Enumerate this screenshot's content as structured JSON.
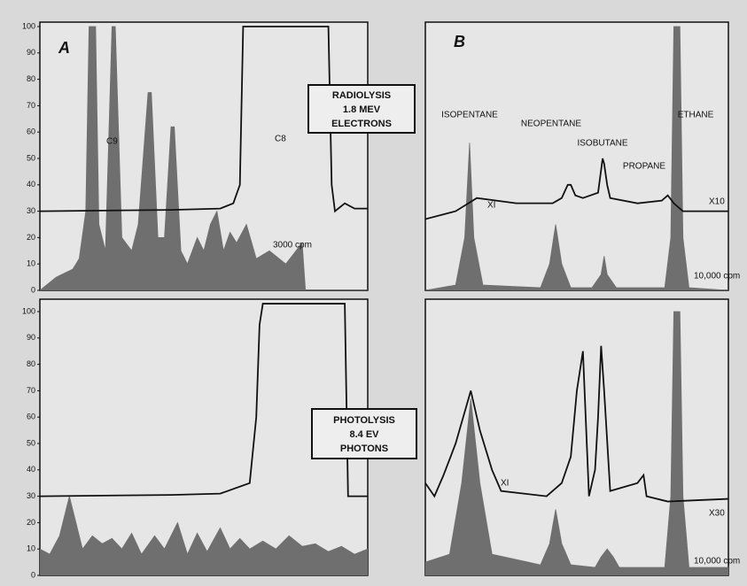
{
  "chart_data": [
    {
      "type": "line",
      "panel": "A",
      "ylim": [
        0,
        100
      ],
      "yticks": [
        0,
        10,
        20,
        30,
        40,
        50,
        60,
        70,
        80,
        90,
        100
      ],
      "xlim": [
        0,
        100
      ],
      "annotations": [
        "RADIOLYSIS",
        "1.8 MEV",
        "ELECTRONS",
        "C9",
        "C8",
        "3000 cpm"
      ],
      "series": [
        {
          "type": "area",
          "color": "#6f6f6f",
          "x": [
            0,
            5,
            10,
            12,
            14,
            15,
            17,
            18,
            20,
            22,
            23,
            25,
            28,
            30,
            33,
            34,
            36,
            38,
            40,
            41,
            43,
            45,
            48,
            50,
            52,
            54,
            56,
            58,
            60,
            63,
            66,
            70,
            75,
            80,
            81,
            100
          ],
          "values": [
            0,
            5,
            8,
            12,
            30,
            100,
            100,
            25,
            15,
            100,
            100,
            20,
            15,
            25,
            75,
            75,
            20,
            20,
            62,
            62,
            15,
            10,
            20,
            15,
            25,
            30,
            15,
            22,
            18,
            25,
            12,
            15,
            10,
            18,
            0,
            0
          ]
        },
        {
          "type": "line",
          "color": "#111111",
          "x": [
            0,
            40,
            55,
            59,
            61,
            62,
            88,
            89,
            90,
            93,
            96,
            100
          ],
          "values": [
            30,
            30.5,
            31,
            33,
            40,
            100,
            100,
            40,
            30,
            33,
            31,
            31
          ]
        }
      ]
    },
    {
      "type": "line",
      "panel": "B",
      "ylim": [
        0,
        100
      ],
      "xlim": [
        0,
        100
      ],
      "annotations": [
        "ISOPENTANE",
        "NEOPENTANE",
        "ISOBUTANE",
        "PROPANE",
        "ETHANE",
        "XI",
        "X10",
        "10,000 cpm"
      ],
      "series": [
        {
          "type": "area",
          "color": "#6f6f6f",
          "x": [
            0,
            10,
            13,
            14.6,
            16,
            19,
            38,
            41,
            43,
            45,
            48,
            55,
            58,
            59,
            60,
            63,
            79,
            81,
            82,
            84,
            85,
            87,
            100
          ],
          "values": [
            0,
            2,
            20,
            56,
            20,
            2,
            1,
            10,
            25,
            10,
            1,
            1,
            6,
            13,
            6,
            1,
            1,
            20,
            100,
            100,
            20,
            1,
            0
          ]
        },
        {
          "type": "line",
          "color": "#111111",
          "x": [
            0,
            10,
            17,
            30,
            42,
            45,
            47,
            48,
            49.5,
            52,
            57,
            58.5,
            59,
            60,
            61,
            70,
            78,
            80,
            82,
            85,
            100
          ],
          "values": [
            27,
            30,
            35,
            33,
            33,
            35,
            40,
            40,
            36,
            35,
            37,
            50,
            48,
            40,
            35,
            33,
            34,
            36,
            33,
            30,
            30
          ]
        }
      ]
    },
    {
      "type": "line",
      "panel": "A",
      "ylim": [
        0,
        100
      ],
      "yticks": [
        0,
        10,
        20,
        30,
        40,
        50,
        60,
        70,
        80,
        90,
        100
      ],
      "xlim": [
        0,
        100
      ],
      "annotations": [
        "PHOTOLYSIS",
        "8.4 EV",
        "PHOTONS"
      ],
      "series": [
        {
          "type": "area",
          "color": "#6f6f6f",
          "x": [
            0,
            3,
            6,
            9,
            11,
            13,
            16,
            19,
            22,
            25,
            28,
            31,
            35,
            38,
            42,
            45,
            48,
            51,
            55,
            58,
            61,
            64,
            68,
            72,
            76,
            80,
            84,
            88,
            92,
            96,
            100
          ],
          "values": [
            10,
            8,
            15,
            30,
            20,
            10,
            15,
            12,
            14,
            10,
            16,
            8,
            15,
            10,
            20,
            8,
            16,
            9,
            18,
            10,
            14,
            10,
            13,
            10,
            15,
            11,
            12,
            9,
            11,
            8,
            10
          ]
        },
        {
          "type": "line",
          "color": "#111111",
          "x": [
            0,
            40,
            55,
            64,
            66,
            67,
            68,
            93,
            94,
            100
          ],
          "values": [
            30,
            30.5,
            31,
            35,
            60,
            95,
            103,
            103,
            30,
            30
          ]
        }
      ]
    },
    {
      "type": "line",
      "panel": "B",
      "ylim": [
        0,
        100
      ],
      "xlim": [
        0,
        100
      ],
      "annotations": [
        "XI",
        "X30",
        "10,000 cpm"
      ],
      "series": [
        {
          "type": "area",
          "color": "#6f6f6f",
          "x": [
            0,
            8,
            12,
            15,
            18,
            22,
            38,
            41,
            43,
            45,
            48,
            56,
            58,
            60,
            62,
            64,
            79,
            81,
            82,
            84,
            85,
            87,
            100
          ],
          "values": [
            5,
            8,
            35,
            67,
            35,
            8,
            4,
            12,
            25,
            12,
            4,
            3,
            7,
            10,
            7,
            3,
            3,
            30,
            100,
            100,
            30,
            3,
            3
          ]
        },
        {
          "type": "line",
          "color": "#111111",
          "x": [
            0,
            3,
            6,
            10,
            15,
            18,
            22,
            25,
            40,
            45,
            48,
            50,
            52,
            54,
            56,
            57,
            58,
            59,
            61,
            70,
            72,
            73,
            80,
            100
          ],
          "values": [
            35,
            30,
            38,
            50,
            70,
            55,
            40,
            32,
            30,
            35,
            45,
            70,
            85,
            30,
            40,
            60,
            87,
            70,
            32,
            35,
            38,
            30,
            28,
            29
          ]
        }
      ]
    }
  ]
}
